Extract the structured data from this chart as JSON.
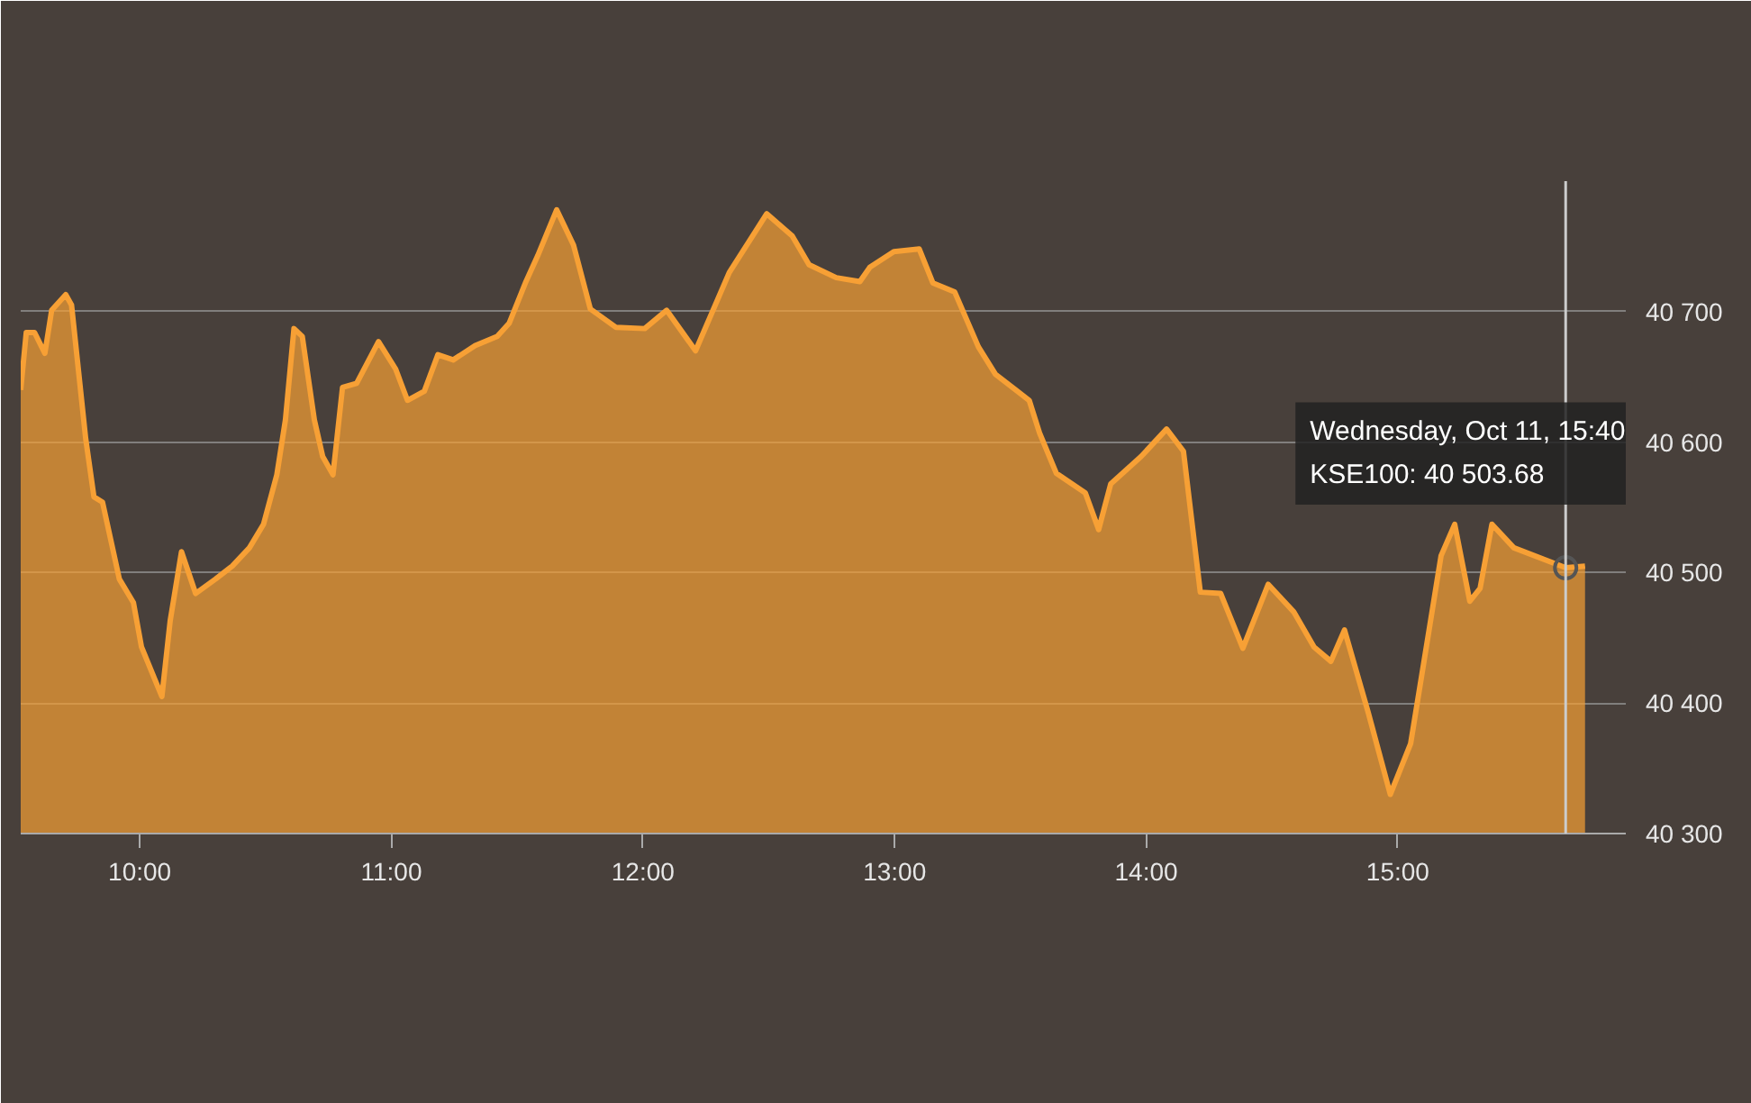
{
  "chart_data": {
    "type": "area",
    "x": [
      9.527,
      9.549,
      9.582,
      9.623,
      9.65,
      9.706,
      9.729,
      9.785,
      9.818,
      9.852,
      9.919,
      9.975,
      10.007,
      10.088,
      10.121,
      10.166,
      10.222,
      10.301,
      10.368,
      10.436,
      10.492,
      10.545,
      10.579,
      10.613,
      10.646,
      10.694,
      10.727,
      10.768,
      10.806,
      10.862,
      10.949,
      11.017,
      11.064,
      11.131,
      11.185,
      11.246,
      11.333,
      11.421,
      11.468,
      11.535,
      11.582,
      11.657,
      11.724,
      11.791,
      11.892,
      12.007,
      12.094,
      12.209,
      12.343,
      12.492,
      12.593,
      12.66,
      12.768,
      12.862,
      12.902,
      12.997,
      13.098,
      13.152,
      13.239,
      13.333,
      13.401,
      13.488,
      13.535,
      13.576,
      13.643,
      13.758,
      13.811,
      13.859,
      13.98,
      14.081,
      14.148,
      14.215,
      14.296,
      14.384,
      14.485,
      14.586,
      14.667,
      14.734,
      14.788,
      14.882,
      14.97,
      15.051,
      15.125,
      15.172,
      15.226,
      15.286,
      15.327,
      15.374,
      15.461,
      15.667,
      15.744
    ],
    "series": [
      {
        "color": "#f7a035",
        "values": [
          40640,
          40684,
          40684,
          40668,
          40701,
          40713,
          40705,
          40603,
          40558,
          40554,
          40495,
          40477,
          40443,
          40405,
          40463,
          40516,
          40484,
          40495,
          40505,
          40519,
          40537,
          40575,
          40617,
          40687,
          40681,
          40617,
          40589,
          40575,
          40642,
          40645,
          40677,
          40656,
          40632,
          40639,
          40667,
          40663,
          40674,
          40681,
          40691,
          40723,
          40743,
          40778,
          40751,
          40702,
          40688,
          40687,
          40701,
          40670,
          40730,
          40775,
          40758,
          40736,
          40726,
          40723,
          40734,
          40746,
          40748,
          40722,
          40715,
          40673,
          40652,
          40639,
          40632,
          40607,
          40576,
          40561,
          40533,
          40568,
          40589,
          40610,
          40593,
          40485,
          40484,
          40442,
          40491,
          40470,
          40443,
          40432,
          40456,
          40393,
          40330,
          40369,
          40457,
          40513,
          40537,
          40478,
          40488,
          40537,
          40519,
          40503.68,
          40505
        ]
      }
    ],
    "xlim": [
      9.527,
      15.906
    ],
    "ylim": [
      40300,
      40800
    ],
    "xticks": [
      {
        "value": 10,
        "label": "10:00"
      },
      {
        "value": 11,
        "label": "11:00"
      },
      {
        "value": 12,
        "label": "12:00"
      },
      {
        "value": 13,
        "label": "13:00"
      },
      {
        "value": 14,
        "label": "14:00"
      },
      {
        "value": 15,
        "label": "15:00"
      }
    ],
    "yticks": [
      {
        "value": 40300,
        "label": "40 300"
      },
      {
        "value": 40400,
        "label": "40 400"
      },
      {
        "value": 40500,
        "label": "40 500"
      },
      {
        "value": 40600,
        "label": "40 600"
      },
      {
        "value": 40700,
        "label": "40 700"
      },
      {
        "value": 40800,
        "label": null
      }
    ],
    "grid": "y",
    "ref_lines": [
      {
        "axis": "x",
        "value": 15.667,
        "label": null,
        "color": "#cccccc"
      }
    ],
    "annotations": [
      {
        "text": "Wednesday, Oct 11, 15:40\nKSE100: 40 503.68",
        "x": 15.667,
        "y": 40503.68
      }
    ]
  }
}
